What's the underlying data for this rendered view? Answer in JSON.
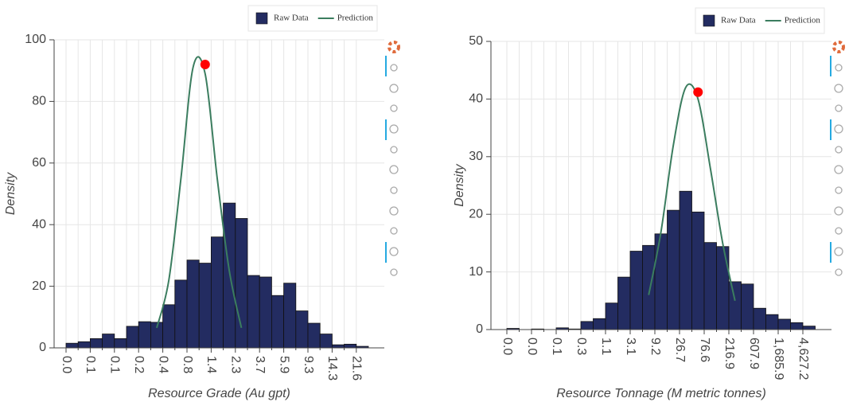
{
  "chart_data": [
    {
      "type": "bar",
      "x_label": "Resource Grade (Au gpt)",
      "y_label": "Density",
      "categories": [
        "0.0",
        null,
        "0.1",
        null,
        "0.1",
        null,
        "0.2",
        null,
        "0.4",
        null,
        "0.8",
        null,
        "1.4",
        null,
        "2.3",
        null,
        "3.7",
        null,
        "5.9",
        null,
        "9.3",
        null,
        "14.3",
        null,
        "21.6"
      ],
      "series": [
        {
          "name": "Raw Data",
          "type": "bar",
          "color": "#232c61",
          "values": [
            1.5,
            2,
            3,
            4.5,
            3,
            7,
            8.5,
            8.3,
            14,
            22,
            28.5,
            27.5,
            36,
            47,
            42,
            23.5,
            23,
            17,
            21,
            12,
            8,
            4.5,
            1,
            1.2,
            0.5
          ]
        },
        {
          "name": "Prediction",
          "type": "line",
          "color": "#3b7d5f",
          "values": [
            null,
            null,
            null,
            null,
            null,
            null,
            null,
            6.5,
            22,
            55,
            91,
            89,
            55,
            25,
            6.5,
            null,
            null,
            null,
            null,
            null,
            null,
            null,
            null,
            null,
            null
          ]
        },
        {
          "type": "point",
          "color": "#ff0000",
          "values": [
            null,
            null,
            null,
            null,
            null,
            null,
            null,
            null,
            null,
            null,
            null,
            92,
            null,
            null,
            null,
            null,
            null,
            null,
            null,
            null,
            null,
            null,
            null,
            null,
            null
          ]
        }
      ],
      "ylim": [
        0,
        100
      ],
      "yticks": [
        0,
        20,
        40,
        60,
        80,
        100
      ],
      "grid": true
    },
    {
      "type": "bar",
      "x_label": "Resource Tonnage (M metric tonnes)",
      "y_label": "Density",
      "categories": [
        "0.0",
        null,
        "0.0",
        null,
        "0.1",
        null,
        "0.3",
        null,
        "1.1",
        null,
        "3.1",
        null,
        "9.2",
        null,
        "26.7",
        null,
        "76.6",
        null,
        "216.9",
        null,
        "607.9",
        null,
        "1,685.9",
        null,
        "4,627.2"
      ],
      "series": [
        {
          "name": "Raw Data",
          "type": "bar",
          "color": "#232c61",
          "values": [
            0.2,
            0,
            0.1,
            0,
            0.3,
            0.1,
            1.4,
            1.9,
            4.6,
            9.1,
            13.6,
            14.6,
            16.6,
            20.7,
            24,
            20.4,
            15.1,
            14.4,
            8.3,
            7.9,
            3.7,
            2.6,
            1.8,
            1.2,
            0.6
          ]
        },
        {
          "name": "Prediction",
          "type": "line",
          "color": "#3b7d5f",
          "values": [
            null,
            null,
            null,
            null,
            null,
            null,
            null,
            null,
            null,
            null,
            null,
            6,
            17,
            32,
            42,
            40,
            28,
            15,
            5,
            null,
            null,
            null,
            null,
            null,
            null
          ]
        },
        {
          "type": "point",
          "color": "#ff0000",
          "values": [
            null,
            null,
            null,
            null,
            null,
            null,
            null,
            null,
            null,
            null,
            null,
            null,
            null,
            null,
            null,
            41.2,
            null,
            null,
            null,
            null,
            null,
            null,
            null,
            null,
            null
          ]
        }
      ],
      "ylim": [
        0,
        50
      ],
      "yticks": [
        0,
        10,
        20,
        30,
        40,
        50
      ],
      "grid": true
    }
  ]
}
